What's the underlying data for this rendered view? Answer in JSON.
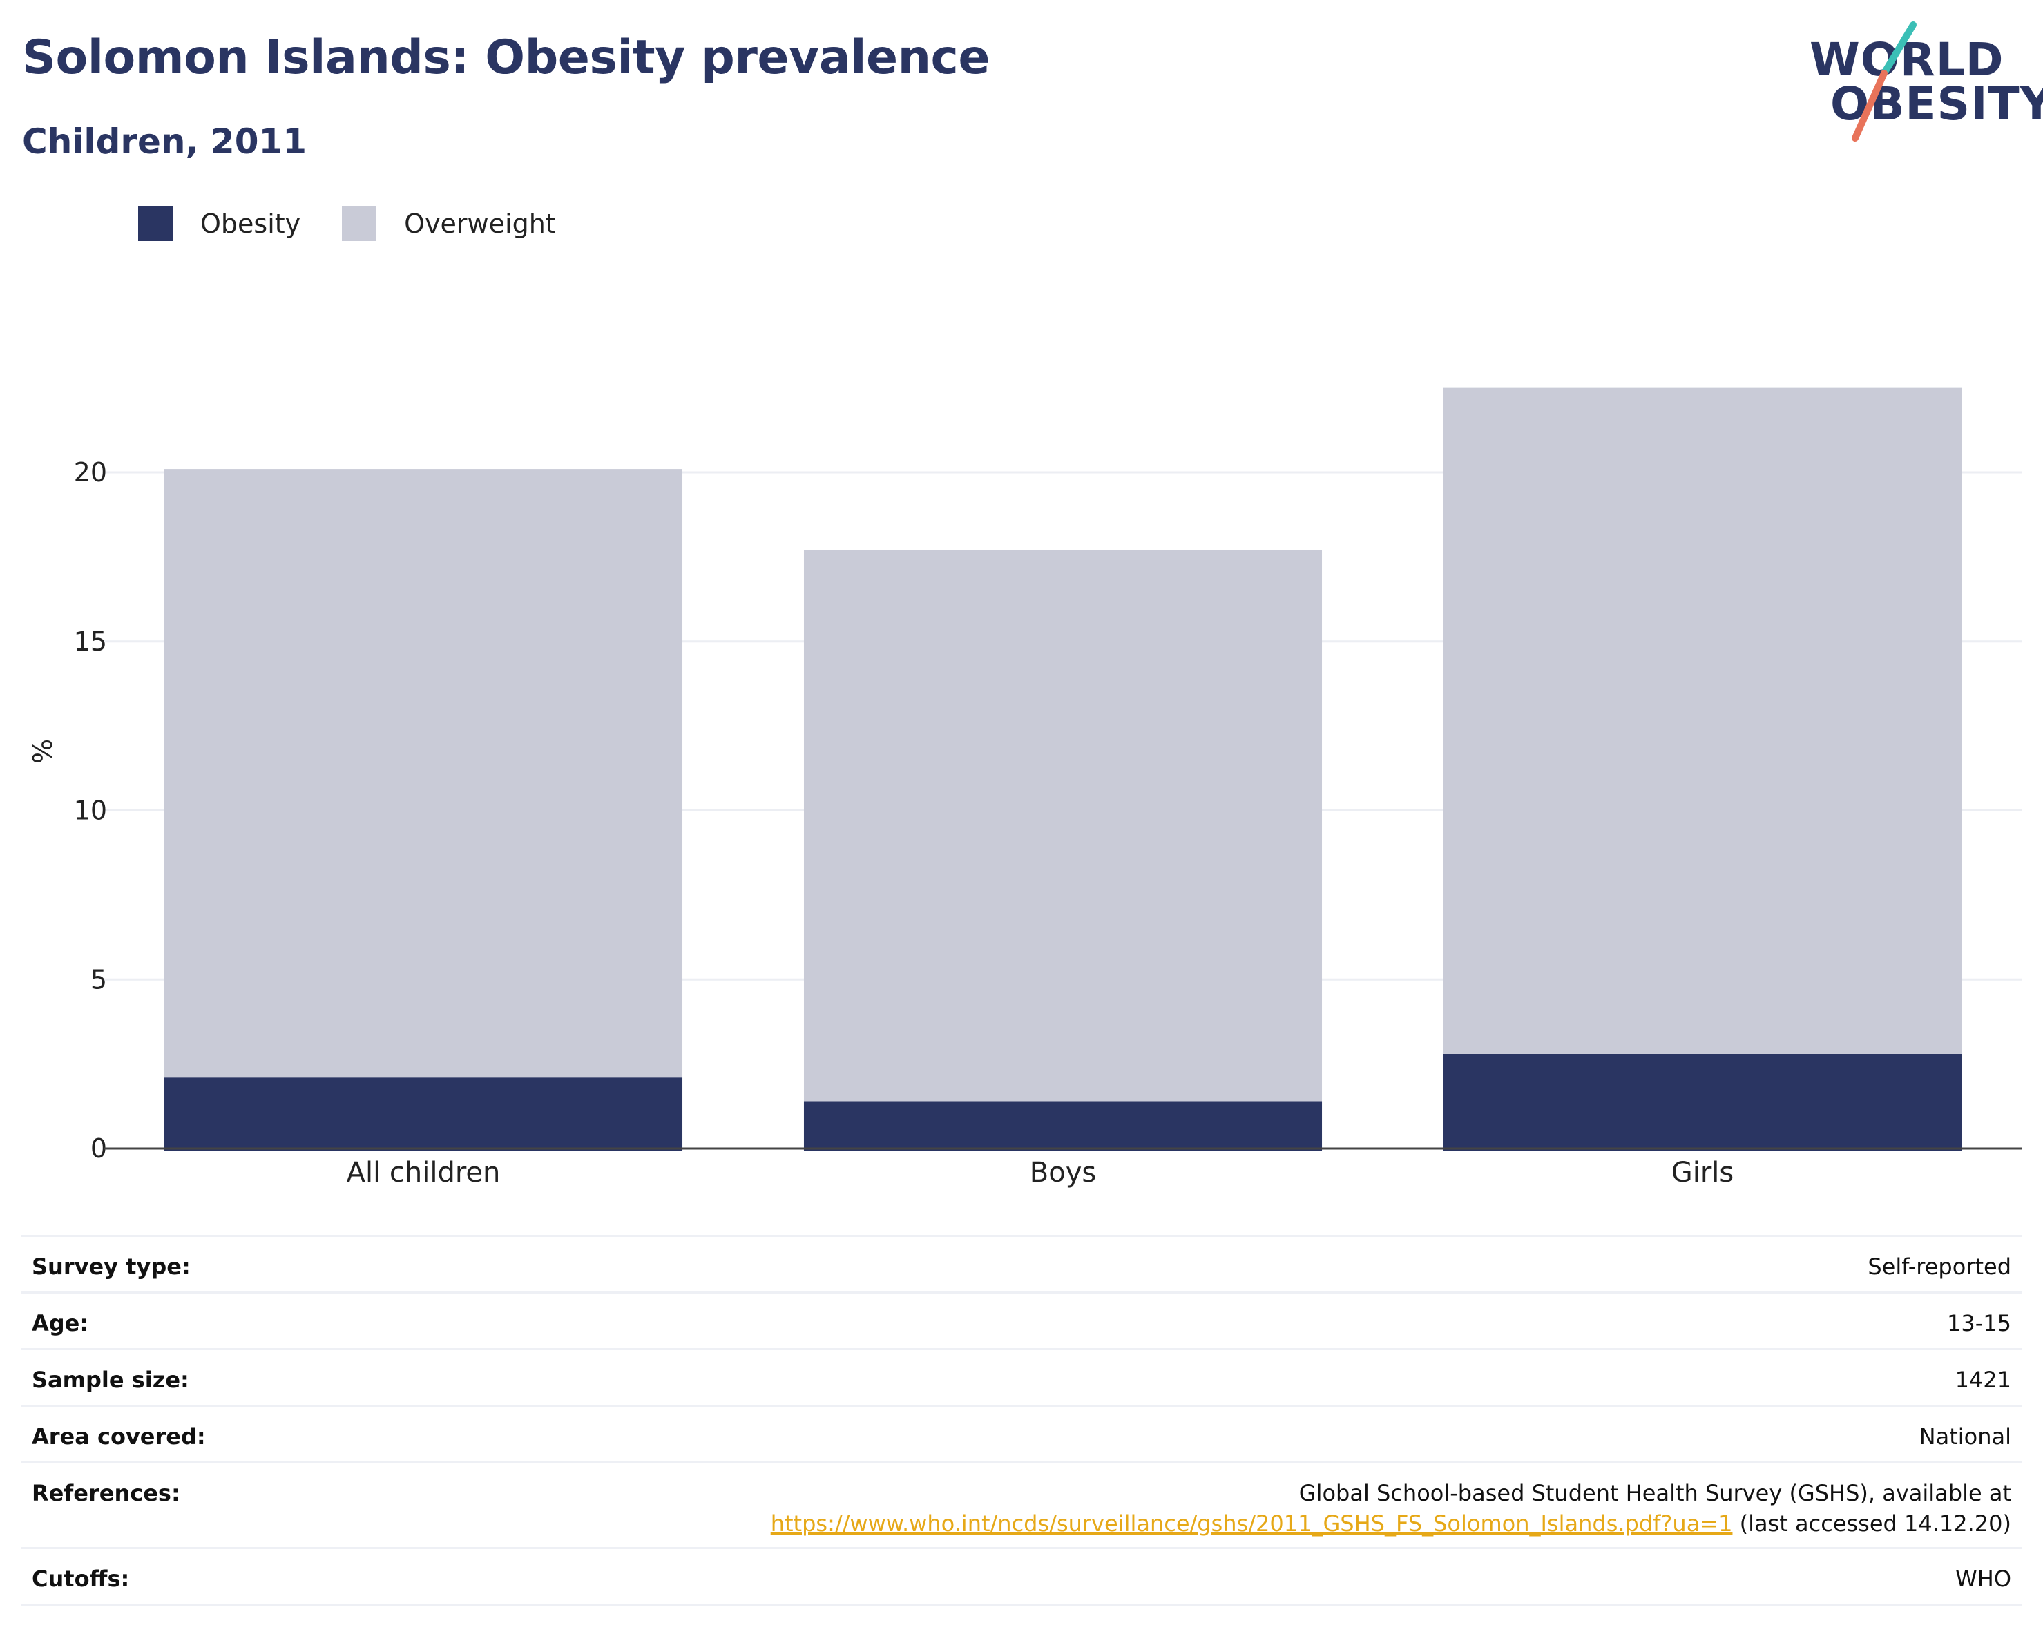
{
  "header": {
    "title": "Solomon Islands: Obesity prevalence",
    "subtitle": "Children, 2011"
  },
  "logo": {
    "line1": "WORLD",
    "line2": "OBESITY",
    "colors": {
      "teal": "#3bbfb6",
      "coral": "#e8735a",
      "navy": "#2a3562"
    }
  },
  "legend": [
    {
      "label": "Obesity",
      "color": "#2a3562"
    },
    {
      "label": "Overweight",
      "color": "#c9cbd7"
    }
  ],
  "chart_data": {
    "type": "bar",
    "stacked": true,
    "categories": [
      "All children",
      "Boys",
      "Girls"
    ],
    "series": [
      {
        "name": "Obesity",
        "values": [
          2.1,
          1.4,
          2.8
        ],
        "color": "#2a3562"
      },
      {
        "name": "Overweight",
        "values": [
          18.0,
          16.3,
          19.7
        ],
        "color": "#c9cbd7"
      }
    ],
    "totals": [
      20.1,
      17.7,
      22.5
    ],
    "ylabel": "%",
    "yticks": [
      0,
      5,
      10,
      15,
      20
    ],
    "ylim": [
      0,
      25
    ],
    "grid": true,
    "legend_position": "top-left"
  },
  "details": [
    {
      "key": "Survey type:",
      "value": "Self-reported"
    },
    {
      "key": "Age:",
      "value": "13-15"
    },
    {
      "key": "Sample size:",
      "value": "1421"
    },
    {
      "key": "Area covered:",
      "value": "National"
    },
    {
      "key": "References:",
      "value": "Global School-based Student Health Survey (GSHS), available at",
      "link": "https://www.who.int/ncds/surveillance/gshs/2011_GSHS_FS_Solomon_Islands.pdf?ua=1",
      "suffix": " (last accessed 14.12.20)"
    },
    {
      "key": "Cutoffs:",
      "value": "WHO"
    }
  ]
}
